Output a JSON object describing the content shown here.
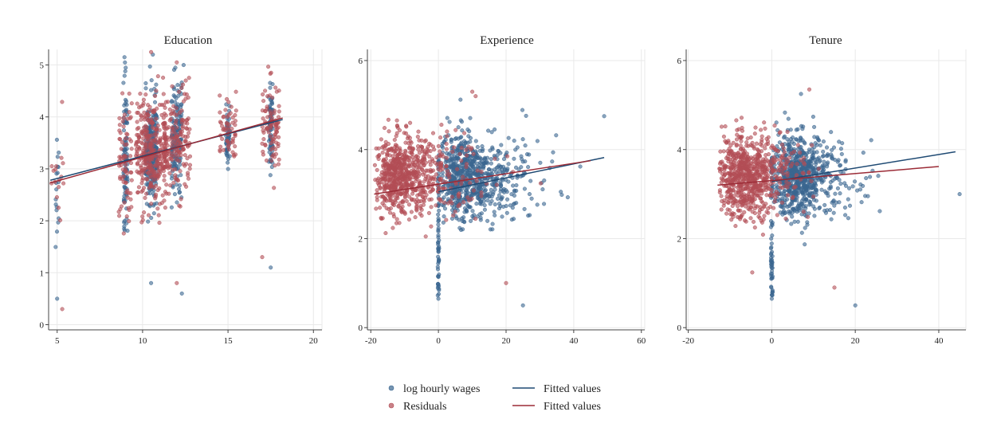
{
  "colors": {
    "wages": "#3a6690",
    "residuals": "#b24d55",
    "fit_wages": "#1f4a73",
    "fit_residuals": "#9b2b36",
    "grid": "#e9e9e9",
    "axis": "#444444"
  },
  "legend": {
    "position": "bottom-center",
    "items": [
      {
        "kind": "marker",
        "label": "log hourly wages",
        "color": "#3a6690"
      },
      {
        "kind": "line",
        "label": "Fitted values",
        "color": "#1f4a73"
      },
      {
        "kind": "marker",
        "label": "Residuals",
        "color": "#b24d55"
      },
      {
        "kind": "line",
        "label": "Fitted values",
        "color": "#9b2b36"
      }
    ]
  },
  "chart_data": [
    {
      "type": "scatter",
      "title": "Education",
      "xlim": [
        4.5,
        20.5
      ],
      "ylim": [
        -0.1,
        5.3
      ],
      "xticks": [
        5,
        10,
        15,
        20
      ],
      "yticks": [
        0,
        1,
        2,
        3,
        4,
        5
      ],
      "grid": true,
      "fit_wages": {
        "x": [
          4.6,
          18.2
        ],
        "y": [
          2.78,
          3.95
        ]
      },
      "fit_residuals": {
        "x": [
          4.6,
          18.2
        ],
        "y": [
          2.73,
          3.98
        ]
      },
      "clusters": [
        {
          "x": 5,
          "spread": 0.1,
          "n": 18,
          "y_mean": 2.7,
          "y_sd": 0.6,
          "series": "wages"
        },
        {
          "x": 5,
          "spread": 0.4,
          "n": 16,
          "y_mean": 2.8,
          "y_sd": 0.5,
          "series": "residuals"
        },
        {
          "x": 9,
          "spread": 0.12,
          "n": 90,
          "y_mean": 3.2,
          "y_sd": 0.75,
          "series": "wages"
        },
        {
          "x": 9,
          "spread": 0.4,
          "n": 75,
          "y_mean": 3.1,
          "y_sd": 0.75,
          "series": "residuals"
        },
        {
          "x": 10.5,
          "spread": 0.35,
          "n": 260,
          "y_mean": 3.3,
          "y_sd": 0.5,
          "series": "wages"
        },
        {
          "x": 10.5,
          "spread": 0.9,
          "n": 320,
          "y_mean": 3.3,
          "y_sd": 0.5,
          "series": "residuals"
        },
        {
          "x": 12,
          "spread": 0.3,
          "n": 160,
          "y_mean": 3.55,
          "y_sd": 0.5,
          "series": "wages"
        },
        {
          "x": 12,
          "spread": 0.8,
          "n": 170,
          "y_mean": 3.5,
          "y_sd": 0.5,
          "series": "residuals"
        },
        {
          "x": 15,
          "spread": 0.12,
          "n": 50,
          "y_mean": 3.7,
          "y_sd": 0.3,
          "series": "wages"
        },
        {
          "x": 15,
          "spread": 0.5,
          "n": 55,
          "y_mean": 3.7,
          "y_sd": 0.3,
          "series": "residuals"
        },
        {
          "x": 17.5,
          "spread": 0.12,
          "n": 80,
          "y_mean": 3.85,
          "y_sd": 0.45,
          "series": "wages"
        },
        {
          "x": 17.5,
          "spread": 0.5,
          "n": 90,
          "y_mean": 3.85,
          "y_sd": 0.45,
          "series": "residuals"
        }
      ],
      "outliers": [
        {
          "x": 5,
          "y": 0.5,
          "series": "wages"
        },
        {
          "x": 5.3,
          "y": 0.3,
          "series": "residuals"
        },
        {
          "x": 10.5,
          "y": 5.25,
          "series": "residuals"
        },
        {
          "x": 10.6,
          "y": 5.2,
          "series": "wages"
        },
        {
          "x": 12,
          "y": 5.05,
          "series": "residuals"
        },
        {
          "x": 12.4,
          "y": 5.0,
          "series": "wages"
        },
        {
          "x": 12.3,
          "y": 0.6,
          "series": "wages"
        },
        {
          "x": 12,
          "y": 0.8,
          "series": "residuals"
        },
        {
          "x": 10.5,
          "y": 0.8,
          "series": "wages"
        },
        {
          "x": 17.5,
          "y": 1.1,
          "series": "wages"
        },
        {
          "x": 17,
          "y": 1.3,
          "series": "residuals"
        }
      ]
    },
    {
      "type": "scatter",
      "title": "Experience",
      "xlim": [
        -21,
        61
      ],
      "ylim": [
        -0.05,
        6.25
      ],
      "xticks": [
        -20,
        0,
        20,
        40,
        60
      ],
      "yticks": [
        0,
        2,
        4,
        6
      ],
      "grid": true,
      "fit_wages": {
        "x": [
          0,
          49
        ],
        "y": [
          3.05,
          3.82
        ]
      },
      "fit_residuals": {
        "x": [
          -19,
          45
        ],
        "y": [
          3.0,
          3.75
        ]
      },
      "clouds": [
        {
          "series": "wages",
          "n": 750,
          "x_min": 0,
          "x_shape": 8,
          "x_max": 50,
          "y_mean": 3.4,
          "y_sd": 0.45
        },
        {
          "series": "residuals",
          "n": 750,
          "x_min": -19,
          "x_shape": 8,
          "x_max": 46,
          "y_mean": 3.4,
          "y_sd": 0.45
        }
      ],
      "column": {
        "x": 0,
        "n": 70,
        "y_from": 0.7,
        "y_to": 3.9,
        "series": "wages"
      },
      "outliers": [
        {
          "x": 0,
          "y": 0.65,
          "series": "wages"
        },
        {
          "x": 25,
          "y": 0.5,
          "series": "wages"
        },
        {
          "x": 10,
          "y": 5.3,
          "series": "residuals"
        },
        {
          "x": 11,
          "y": 5.2,
          "series": "residuals"
        },
        {
          "x": 49,
          "y": 4.75,
          "series": "wages"
        },
        {
          "x": 20,
          "y": 1.0,
          "series": "residuals"
        }
      ]
    },
    {
      "type": "scatter",
      "title": "Tenure",
      "xlim": [
        -20.5,
        46.5
      ],
      "ylim": [
        -0.05,
        6.25
      ],
      "xticks": [
        -20,
        0,
        20,
        40
      ],
      "yticks": [
        0,
        2,
        4,
        6
      ],
      "grid": true,
      "fit_wages": {
        "x": [
          0,
          44
        ],
        "y": [
          3.28,
          3.95
        ]
      },
      "fit_residuals": {
        "x": [
          -13,
          40
        ],
        "y": [
          3.2,
          3.62
        ]
      },
      "clouds": [
        {
          "series": "wages",
          "n": 750,
          "x_min": 0,
          "x_shape": 5,
          "x_max": 44,
          "y_mean": 3.4,
          "y_sd": 0.45
        },
        {
          "series": "residuals",
          "n": 750,
          "x_min": -13,
          "x_shape": 5,
          "x_max": 40,
          "y_mean": 3.4,
          "y_sd": 0.45
        }
      ],
      "column": {
        "x": 0,
        "n": 70,
        "y_from": 0.7,
        "y_to": 3.9,
        "series": "wages"
      },
      "outliers": [
        {
          "x": 0,
          "y": 0.65,
          "series": "wages"
        },
        {
          "x": 20,
          "y": 0.5,
          "series": "wages"
        },
        {
          "x": 9,
          "y": 5.35,
          "series": "residuals"
        },
        {
          "x": 7,
          "y": 5.25,
          "series": "wages"
        },
        {
          "x": 45,
          "y": 3.0,
          "series": "wages"
        },
        {
          "x": 15,
          "y": 0.9,
          "series": "residuals"
        }
      ]
    }
  ]
}
